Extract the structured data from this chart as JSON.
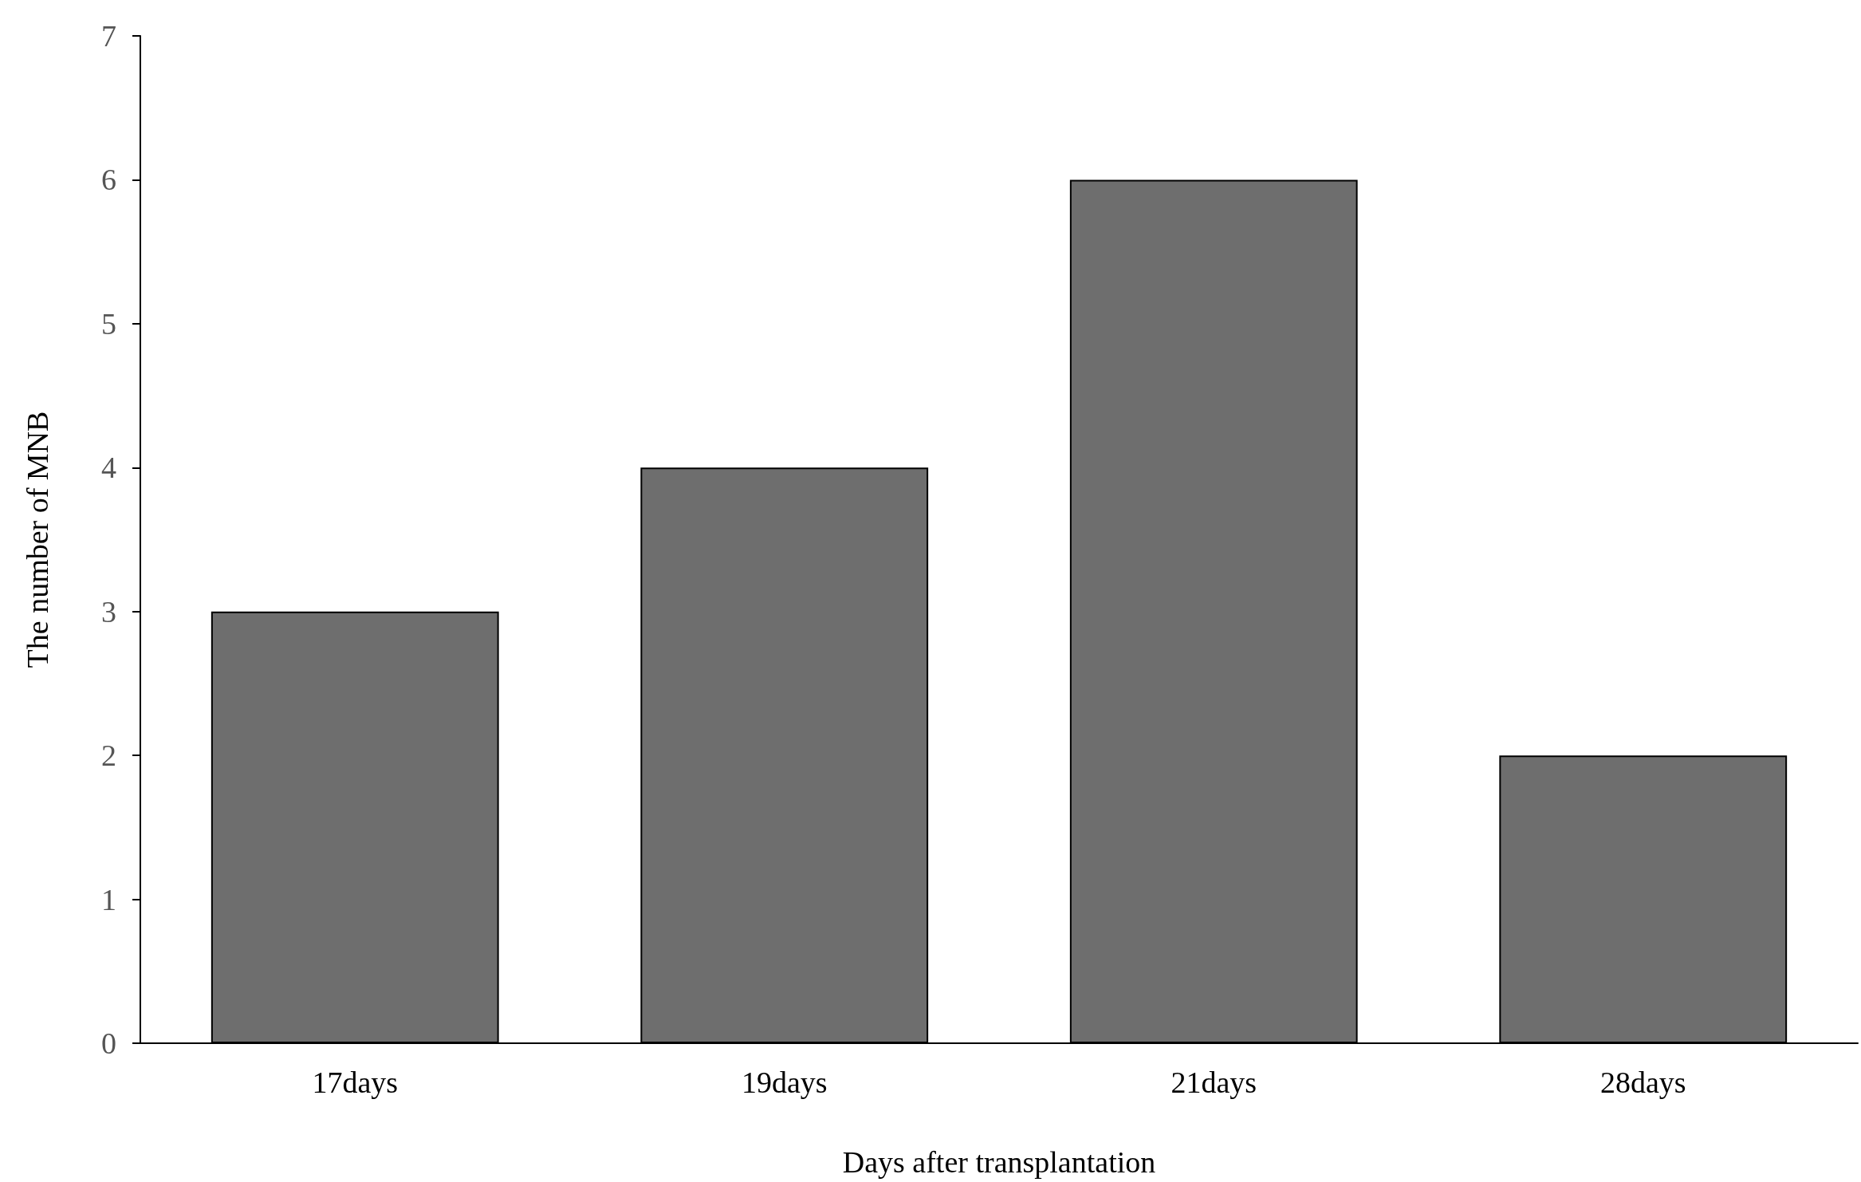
{
  "chart_data": {
    "type": "bar",
    "xlabel": "Days after transplantation",
    "ylabel": "The number of MNB",
    "categories": [
      "17days",
      "19days",
      "21days",
      "28days"
    ],
    "values": [
      3,
      4,
      6,
      2
    ],
    "color": "#6e6e6e",
    "ylim": [
      0,
      7
    ],
    "yticks": [
      0,
      1,
      2,
      3,
      4,
      5,
      6,
      7
    ],
    "grid": false
  }
}
